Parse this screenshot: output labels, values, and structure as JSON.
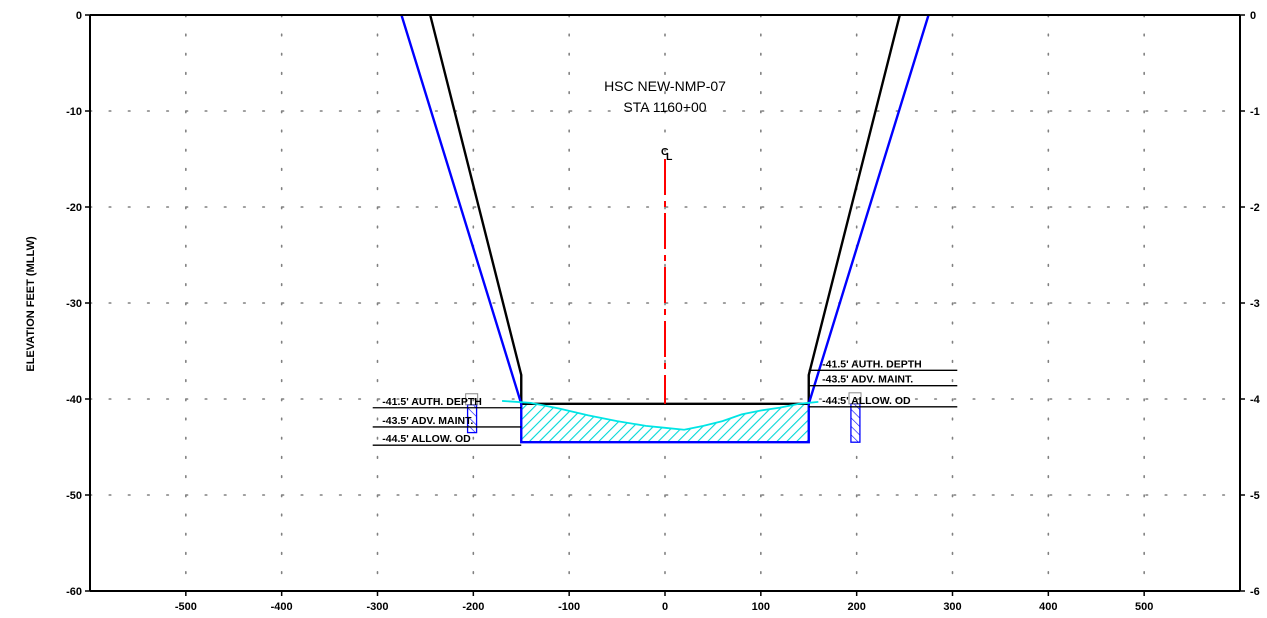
{
  "chart_data": {
    "type": "line",
    "title_lines": [
      "HSC NEW-NMP-07",
      "STA 1160+00"
    ],
    "ylabel": "ELEVATION FEET (MLLW)",
    "xlim": [
      -600,
      600
    ],
    "ylim": [
      -60,
      0
    ],
    "grid": true,
    "x_ticks": [
      -500,
      -400,
      -300,
      -200,
      -100,
      0,
      100,
      200,
      300,
      400,
      500
    ],
    "y_ticks": [
      0,
      -10,
      -20,
      -30,
      -40,
      -50,
      -60
    ],
    "x_tick_labels": [
      "-500",
      "-400",
      "-300",
      "-200",
      "-100",
      "0",
      "100",
      "200",
      "300",
      "400",
      "500"
    ],
    "y_tick_labels": [
      "0",
      "-10",
      "-20",
      "-30",
      "-40",
      "-50",
      "-60"
    ],
    "right_tick_labels": [
      "0",
      "-1",
      "-2",
      "-3",
      "-4",
      "-5",
      "-6"
    ],
    "centerline": {
      "label": "CL",
      "x": 0,
      "y_top": -15,
      "y_bottom": -40.5,
      "color": "#ff0000"
    },
    "series": [
      {
        "color": "#000000",
        "points": [
          [
            -245,
            0
          ],
          [
            -150,
            -37.5
          ],
          [
            -150,
            -40.5
          ],
          [
            150,
            -40.5
          ],
          [
            150,
            -37.5
          ],
          [
            245,
            0
          ]
        ]
      },
      {
        "color": "#0000ff",
        "points": [
          [
            -275,
            0
          ],
          [
            -150,
            -40.5
          ],
          [
            -150,
            -44.5
          ],
          [
            150,
            -44.5
          ],
          [
            150,
            -40.5
          ],
          [
            275,
            0
          ]
        ]
      },
      {
        "color": "#00e5e5",
        "points": [
          [
            -170,
            -40.2
          ],
          [
            -140,
            -40.4
          ],
          [
            -110,
            -41
          ],
          [
            -80,
            -41.7
          ],
          [
            -50,
            -42.3
          ],
          [
            -20,
            -42.8
          ],
          [
            0,
            -43
          ],
          [
            20,
            -43.2
          ],
          [
            40,
            -42.8
          ],
          [
            60,
            -42.3
          ],
          [
            80,
            -41.6
          ],
          [
            100,
            -41.2
          ],
          [
            120,
            -40.9
          ],
          [
            140,
            -40.5
          ],
          [
            160,
            -40.3
          ]
        ]
      }
    ],
    "annotations_left": [
      {
        "text": "-41.5' AUTH. DEPTH",
        "y": -40.6
      },
      {
        "text": "-43.5' ADV. MAINT.",
        "y": -42.6
      },
      {
        "text": "-44.5' ALLOW. OD",
        "y": -44.5
      }
    ],
    "annotations_right": [
      {
        "text": "-41.5' AUTH. DEPTH",
        "y": -36.7
      },
      {
        "text": "-43.5' ADV. MAINT.",
        "y": -38.3
      },
      {
        "text": "-44.5' ALLOW. OD",
        "y": -40.5
      }
    ],
    "colors": {
      "template": "#000000",
      "overdepth": "#0000ff",
      "survey": "#00e5e5",
      "centerline": "#ff0000",
      "grid": "#808080"
    }
  }
}
